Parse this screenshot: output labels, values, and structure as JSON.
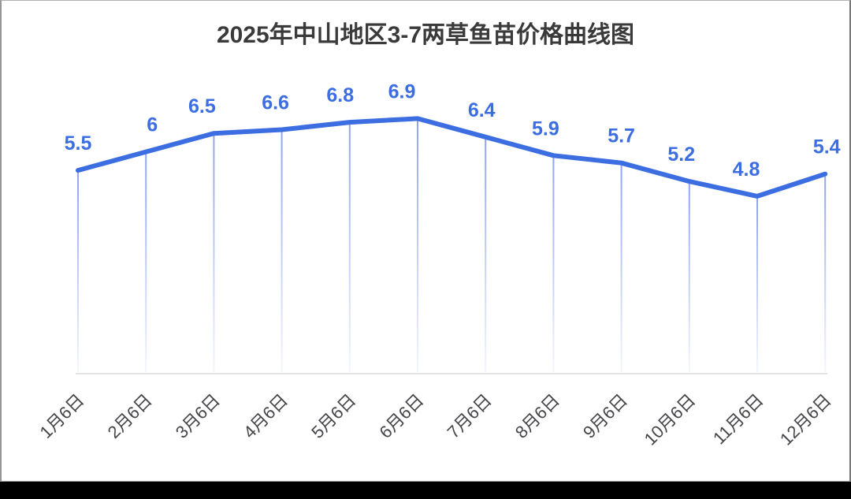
{
  "window": {
    "background": "#FFFFFF",
    "letterbox_color": "#000000"
  },
  "chart_data": {
    "type": "line",
    "title": "2025年中山地区3-7两草鱼苗价格曲线图",
    "categories": [
      "1月6日",
      "2月6日",
      "3月6日",
      "4月6日",
      "5月6日",
      "6月6日",
      "7月6日",
      "8月6日",
      "9月6日",
      "10月6日",
      "11月6日",
      "12月6日"
    ],
    "values": [
      5.5,
      6,
      6.5,
      6.6,
      6.8,
      6.9,
      6.4,
      5.9,
      5.7,
      5.2,
      4.8,
      5.4
    ],
    "value_labels": [
      "5.5",
      "6",
      "6.5",
      "6.6",
      "6.8",
      "6.9",
      "6.4",
      "5.9",
      "5.7",
      "5.2",
      "4.8",
      "5.4"
    ],
    "xlabel": "",
    "ylabel": "",
    "ylim": [
      0,
      8.2
    ],
    "grid": "off",
    "legend": "none",
    "x_label_rotation_deg": -45,
    "marker": "none",
    "drop_lines": "on",
    "colors": {
      "line": "#3C6EE2",
      "value_label": "#3C6EE2",
      "drop_line": "#5073E6",
      "axis_line": "#E2E2E2",
      "x_label": "#45454A",
      "title": "#3A3A3A"
    }
  }
}
